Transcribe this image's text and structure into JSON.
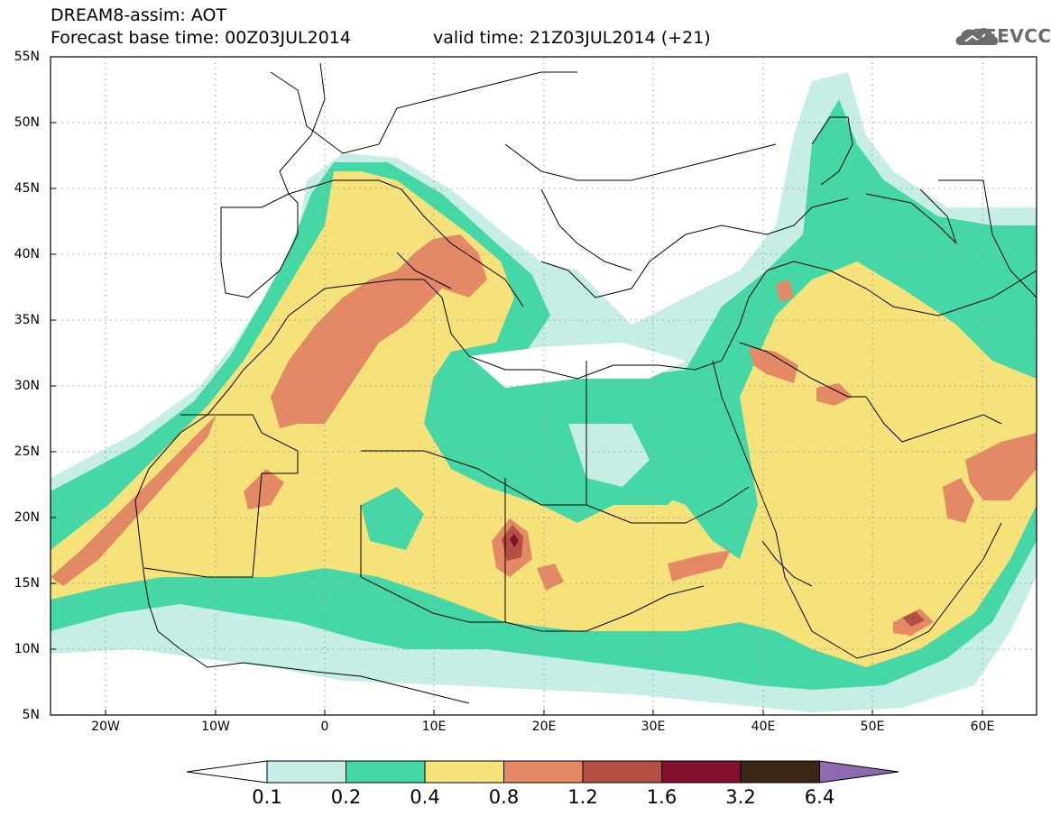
{
  "header": {
    "title": "DREAM8-assim: AOT",
    "base_time": "Forecast base time: 00Z03JUL2014",
    "valid_time": "valid time: 21Z03JUL2014 (+21)",
    "logo_text": "SEEVCCC"
  },
  "axes": {
    "lat_labels": [
      "55N",
      "50N",
      "45N",
      "40N",
      "35N",
      "30N",
      "25N",
      "20N",
      "15N",
      "10N",
      "5N"
    ],
    "lon_labels": [
      "20W",
      "10W",
      "0",
      "10E",
      "20E",
      "30E",
      "40E",
      "50E",
      "60E"
    ]
  },
  "colorbar": {
    "labels": [
      "0.1",
      "0.2",
      "0.4",
      "0.8",
      "1.2",
      "1.6",
      "3.2",
      "6.4"
    ],
    "colors": [
      "#ffffff",
      "#c6eee6",
      "#46d7a6",
      "#f5e27a",
      "#e48966",
      "#b44f44",
      "#820f2e",
      "#3b2616",
      "#8e6bb0"
    ]
  }
}
